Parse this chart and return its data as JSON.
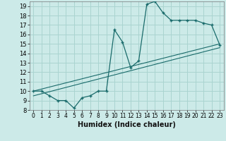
{
  "xlabel": "Humidex (Indice chaleur)",
  "bg_color": "#cceae8",
  "grid_color": "#aad4d0",
  "line_color": "#1a6b6b",
  "xlim": [
    -0.5,
    23.5
  ],
  "ylim": [
    8,
    19.5
  ],
  "xticks": [
    0,
    1,
    2,
    3,
    4,
    5,
    6,
    7,
    8,
    9,
    10,
    11,
    12,
    13,
    14,
    15,
    16,
    17,
    18,
    19,
    20,
    21,
    22,
    23
  ],
  "yticks": [
    8,
    9,
    10,
    11,
    12,
    13,
    14,
    15,
    16,
    17,
    18,
    19
  ],
  "main_x": [
    0,
    1,
    2,
    3,
    4,
    5,
    6,
    7,
    8,
    9,
    10,
    11,
    12,
    13,
    14,
    15,
    16,
    17,
    18,
    19,
    20,
    21,
    22,
    23
  ],
  "main_y": [
    10,
    10,
    9.5,
    9,
    9,
    8.2,
    9.3,
    9.5,
    10,
    10,
    16.5,
    15.2,
    12.5,
    13.2,
    19.2,
    19.5,
    18.3,
    17.5,
    17.5,
    17.5,
    17.5,
    17.2,
    17.0,
    14.9
  ],
  "line2_x": [
    0,
    23
  ],
  "line2_y": [
    10.0,
    15.0
  ],
  "line3_x": [
    0,
    23
  ],
  "line3_y": [
    9.5,
    14.6
  ],
  "tick_fontsize": 6,
  "xlabel_fontsize": 7
}
